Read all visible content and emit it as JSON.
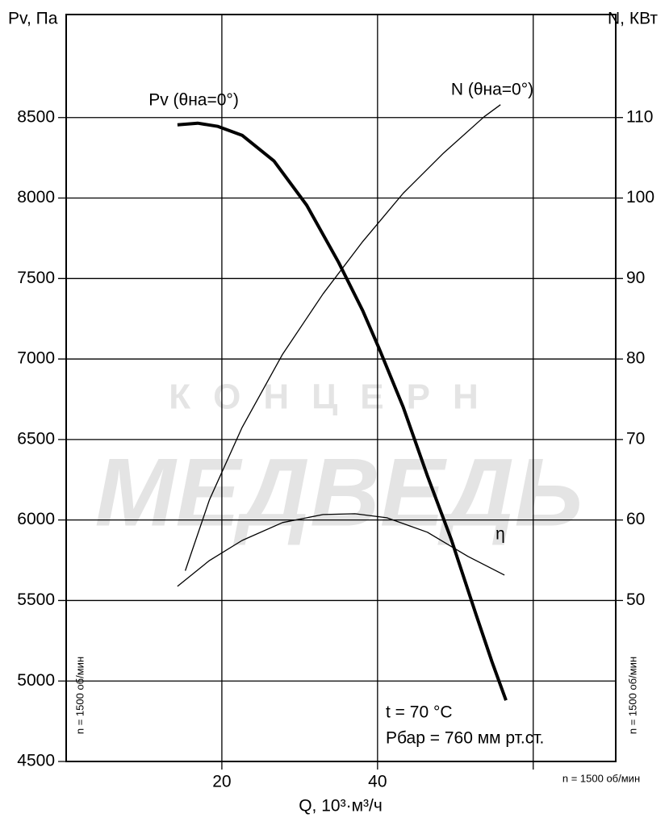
{
  "chart_data": {
    "type": "line",
    "ylabel": "Pv, Па",
    "y2label": "N, КВт",
    "xlabel": "Q, 10³·м³/ч",
    "xlim": [
      0,
      70.6
    ],
    "xticks": [
      20,
      40
    ],
    "xgrid": [
      20,
      40,
      60
    ],
    "ylim": [
      4500,
      9140
    ],
    "yticks": [
      4500,
      5000,
      5500,
      6000,
      6500,
      7000,
      7500,
      8000,
      8500
    ],
    "y2lim": [
      30,
      122.8
    ],
    "y2ticks": [
      50,
      60,
      70,
      80,
      90,
      100,
      110
    ],
    "grid": true,
    "series": [
      {
        "name": "Pv (θна=0°)",
        "color": "#000000",
        "line_width": 4,
        "x": [
          14.3,
          16.9,
          19.5,
          22.6,
          26.7,
          30.9,
          35.0,
          38.1,
          40.2,
          43.3,
          46.4,
          49.5,
          52.6,
          54.7,
          56.5
        ],
        "values": [
          8455,
          8465,
          8445,
          8390,
          8230,
          7955,
          7600,
          7300,
          7065,
          6700,
          6275,
          5875,
          5420,
          5120,
          4880
        ]
      },
      {
        "name": "N (θна=0°)",
        "color": "#000000",
        "line_width": 1.3,
        "axis": "y2",
        "x": [
          15.3,
          18.4,
          22.6,
          27.8,
          33.0,
          38.1,
          43.3,
          48.5,
          53.7,
          55.8
        ],
        "values": [
          53.7,
          62.5,
          71.5,
          80.6,
          88.1,
          94.6,
          100.6,
          105.6,
          110.1,
          111.6
        ]
      },
      {
        "name": "η",
        "color": "#000000",
        "line_width": 1.3,
        "x": [
          14.3,
          18.4,
          22.6,
          27.8,
          33.0,
          37.1,
          41.2,
          46.4,
          51.6,
          56.3
        ],
        "values": [
          5588,
          5748,
          5873,
          5984,
          6034,
          6039,
          6014,
          5924,
          5774,
          5658
        ]
      }
    ],
    "annotations": [
      "t = 70 °C",
      "Рбар = 760 мм рт.ст.",
      "n = 1500 об/мин",
      "n = 1500 об/мин",
      "n = 1500 об/мин"
    ],
    "watermark": [
      "КОНЦЕРН",
      "МЕДВЕДЬ"
    ]
  }
}
